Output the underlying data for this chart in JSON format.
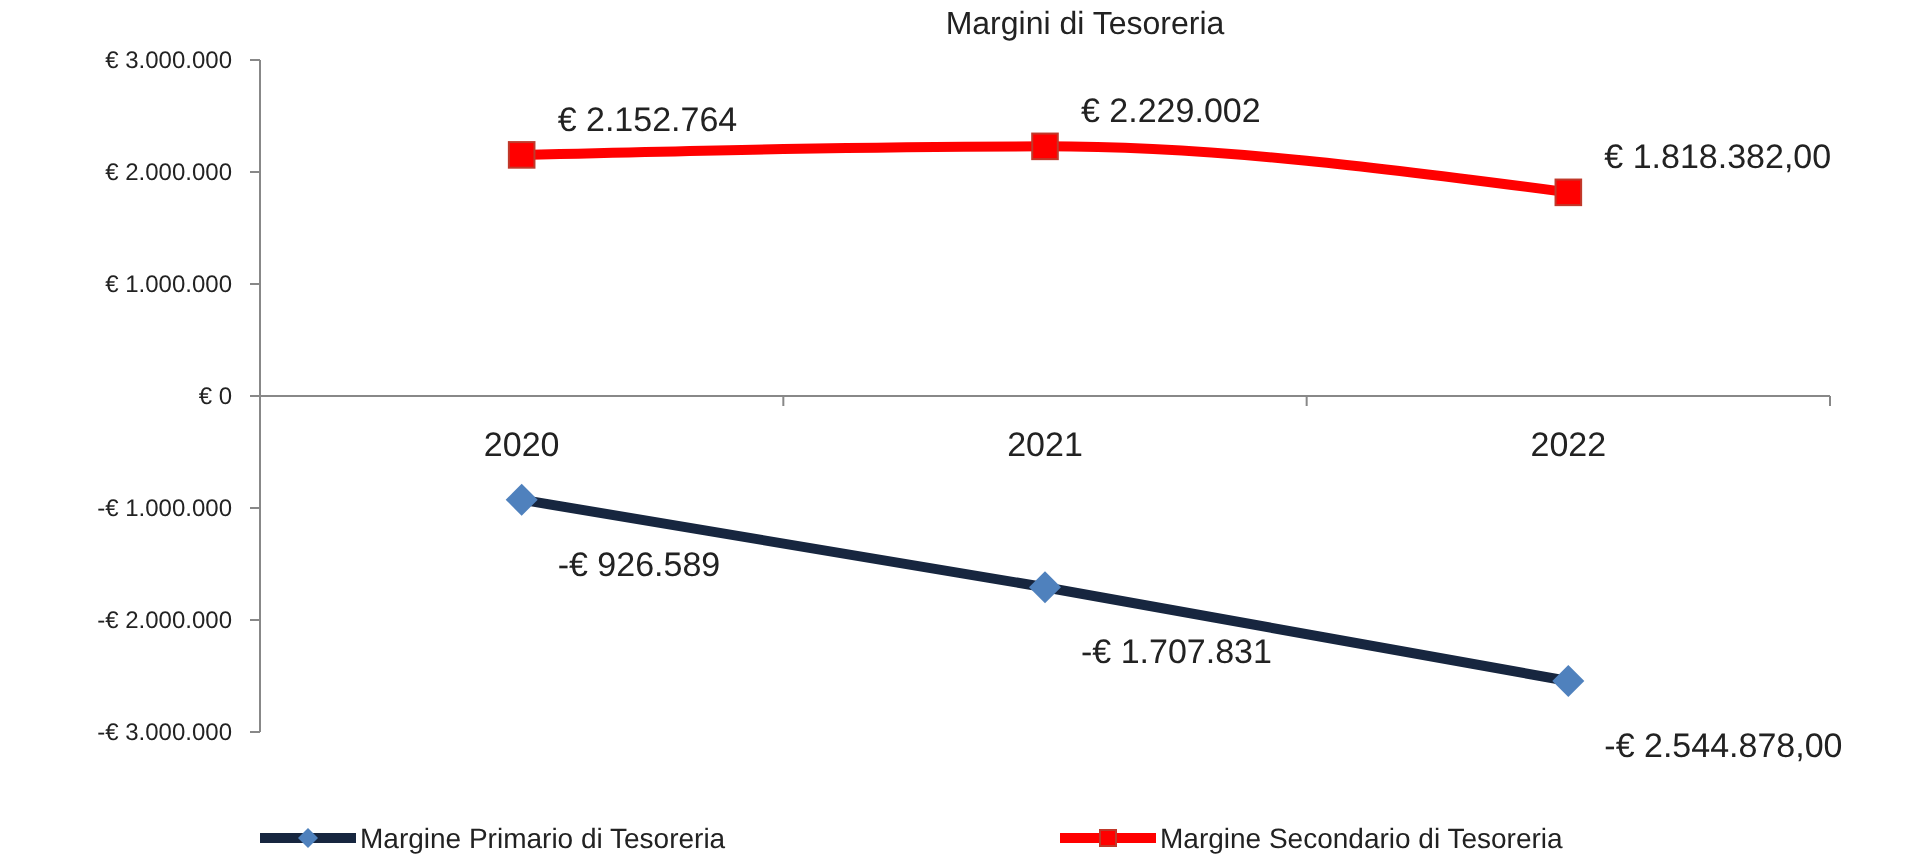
{
  "chart_data": {
    "type": "line",
    "title": "Margini di Tesoreria",
    "categories": [
      "2020",
      "2021",
      "2022"
    ],
    "series": [
      {
        "name": "Margine Primario di Tesoreria",
        "color": "#17263f",
        "marker": "diamond",
        "values": [
          -926589,
          -1707831,
          -2544878
        ],
        "value_labels": [
          "-€ 926.589",
          "-€ 1.707.831",
          "-€ 2.544.878,00"
        ]
      },
      {
        "name": "Margine Secondario di Tesoreria",
        "color": "#ff0000",
        "marker": "square",
        "values": [
          2152764,
          2229002,
          1818382
        ],
        "value_labels": [
          "€ 2.152.764",
          "€ 2.229.002",
          "€ 1.818.382,00"
        ]
      }
    ],
    "ylim": [
      -3000000,
      3000000
    ],
    "yticks": [
      {
        "value": -3000000,
        "label": "-€ 3.000.000"
      },
      {
        "value": -2000000,
        "label": "-€ 2.000.000"
      },
      {
        "value": -1000000,
        "label": "-€ 1.000.000"
      },
      {
        "value": 0,
        "label": "€ 0"
      },
      {
        "value": 1000000,
        "label": "€ 1.000.000"
      },
      {
        "value": 2000000,
        "label": "€ 2.000.000"
      },
      {
        "value": 3000000,
        "label": "€ 3.000.000"
      }
    ],
    "grid": false,
    "legend": "bottom"
  }
}
